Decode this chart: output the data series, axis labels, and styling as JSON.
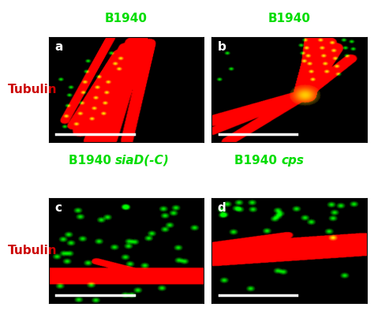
{
  "title_top_left": "B1940",
  "title_top_right": "B1940",
  "title_bot_left": "B1940 siaD(-C)",
  "title_bot_right": "B1940 cps",
  "title_bot_left_plain": "B1940 ",
  "title_bot_left_italic": "siaD(-C)",
  "title_bot_right_plain": "B1940 ",
  "title_bot_right_italic": "cps",
  "label_a": "a",
  "label_b": "b",
  "label_c": "c",
  "label_d": "d",
  "ylabel_top": "Tubulin",
  "ylabel_bot": "Tubulin",
  "title_color": "#00dd00",
  "ylabel_color": "#cc0000",
  "label_color": "#ffffff",
  "fig_width": 4.74,
  "fig_height": 4.08,
  "dpi": 100
}
